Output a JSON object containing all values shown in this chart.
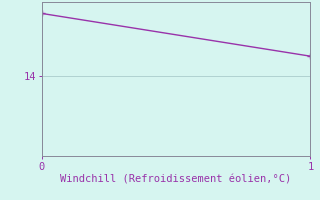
{
  "x_data": [
    0,
    1
  ],
  "y_data": [
    15.1,
    14.35
  ],
  "line_color": "#9933aa",
  "marker_style": "+",
  "marker_size": 5,
  "background_color": "#d6f5f0",
  "grid_color": "#aacccc",
  "axis_color": "#888899",
  "text_color": "#9933aa",
  "xlabel": "Windchill (Refroidissement éolien,°C)",
  "xlabel_fontsize": 7.5,
  "ytick_labels": [
    "14"
  ],
  "ytick_values": [
    14
  ],
  "xtick_values": [
    0,
    1
  ],
  "xlim": [
    0,
    1.0
  ],
  "ylim": [
    12.6,
    15.3
  ],
  "tick_fontsize": 7.5,
  "linewidth": 1.0,
  "figsize": [
    3.2,
    2.0
  ],
  "dpi": 100
}
